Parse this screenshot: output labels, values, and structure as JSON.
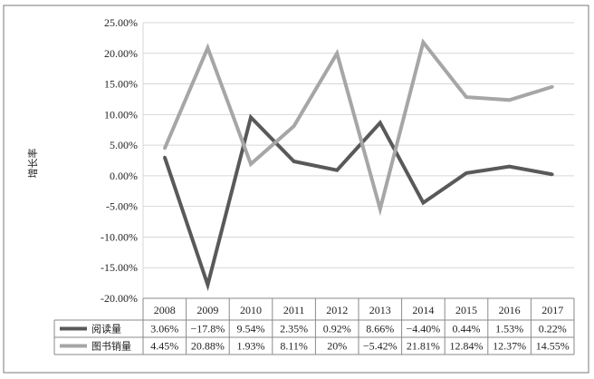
{
  "chart_data": {
    "type": "line",
    "ylabel": "增长率",
    "y_ticks": [
      "25.00%",
      "20.00%",
      "15.00%",
      "10.00%",
      "5.00%",
      "0.00%",
      "-5.00%",
      "-10.00%",
      "-15.00%",
      "-20.00%"
    ],
    "ylim": [
      -20,
      25
    ],
    "categories": [
      "2008",
      "2009",
      "2010",
      "2011",
      "2012",
      "2013",
      "2014",
      "2015",
      "2016",
      "2017"
    ],
    "series": [
      {
        "name": "阅读量",
        "color": "#595959",
        "values": [
          3.06,
          -17.8,
          9.54,
          2.35,
          0.92,
          8.66,
          -4.4,
          0.44,
          1.53,
          0.22
        ],
        "labels": [
          "3.06%",
          "−17.8%",
          "9.54%",
          "2.35%",
          "0.92%",
          "8.66%",
          "−4.40%",
          "0.44%",
          "1.53%",
          "0.22%"
        ]
      },
      {
        "name": "图书销量",
        "color": "#a6a6a6",
        "values": [
          4.45,
          20.88,
          1.93,
          8.11,
          20,
          -5.42,
          21.81,
          12.84,
          12.37,
          14.55
        ],
        "labels": [
          "4.45%",
          "20.88%",
          "1.93%",
          "8.11%",
          "20%",
          "−5.42%",
          "21.81%",
          "12.84%",
          "12.37%",
          "14.55%"
        ]
      }
    ],
    "grid": true,
    "legend": "data-table"
  }
}
